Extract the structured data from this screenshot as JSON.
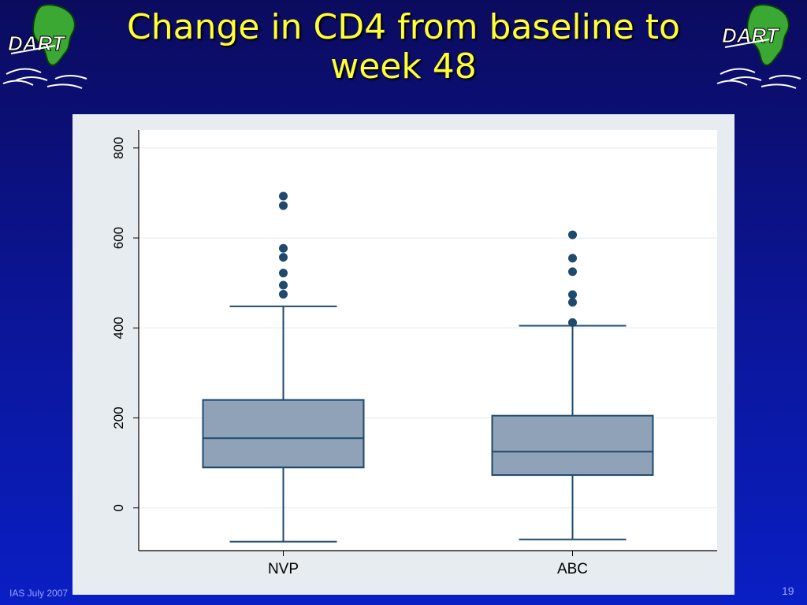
{
  "slide": {
    "title": "Change in CD4 from baseline to week 48",
    "footer_left": "IAS July 2007",
    "page_number": "19",
    "logo_text": "DART"
  },
  "chart_data": {
    "type": "box",
    "categories": [
      "NVP",
      "ABC"
    ],
    "ylim": [
      -95,
      840
    ],
    "yticks": [
      0,
      200,
      400,
      600,
      800
    ],
    "grid": true,
    "boxes": [
      {
        "name": "NVP",
        "whisker_low": -75,
        "q1": 90,
        "median": 155,
        "q3": 240,
        "whisker_high": 448,
        "outliers": [
          475,
          495,
          522,
          557,
          577,
          672,
          693
        ]
      },
      {
        "name": "ABC",
        "whisker_low": -70,
        "q1": 73,
        "median": 125,
        "q3": 205,
        "whisker_high": 405,
        "outliers": [
          412,
          457,
          474,
          525,
          555,
          607
        ]
      }
    ],
    "colors": {
      "box_fill": "#8fa2b8",
      "box_stroke": "#1f4a6e",
      "outlier": "#1f4a6e",
      "grid": "#e3e8ec",
      "title": "#ffff33"
    }
  }
}
